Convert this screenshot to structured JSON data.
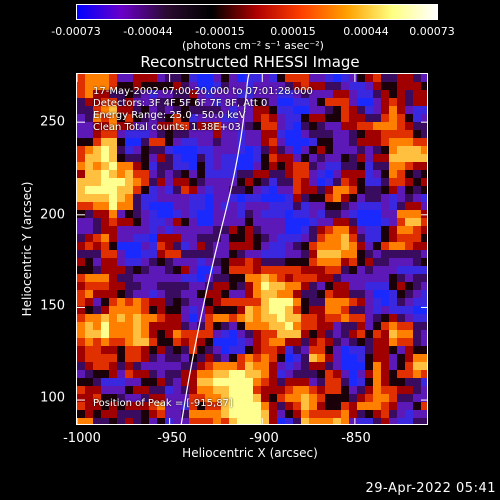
{
  "colorbar": {
    "ticks": [
      "-0.00073",
      "-0.00044",
      "-0.00015",
      "0.00015",
      "0.00044",
      "0.00073"
    ],
    "units": "(photons cm⁻² s⁻¹ asec⁻²)",
    "colors": [
      "#0000ff",
      "#6a00c8",
      "#2a0a30",
      "#000000",
      "#b00000",
      "#ff4000",
      "#ffa000",
      "#ffff80",
      "#ffffff"
    ]
  },
  "title": "Reconstructed RHESSI Image",
  "info": {
    "line1": "17-May-2002 07:00:20.000 to 07:01:28.000",
    "line2": "Detectors: 3F 4F 5F 6F 7F 8F, Att 0",
    "line3": "Energy Range: 25.0 - 50.0 keV",
    "line4": "Clean     Total counts: 1.38E+03",
    "peak": "Position of Peak = [-915,87]"
  },
  "axes": {
    "xlabel": "Heliocentric X (arcsec)",
    "ylabel": "Heliocentric Y (arcsec)",
    "xticks": [
      "-1000",
      "-950",
      "-900",
      "-850"
    ],
    "yticks": [
      "250",
      "200",
      "150",
      "100"
    ],
    "xrange": [
      -1000,
      -810
    ],
    "yrange": [
      86,
      276
    ]
  },
  "timestamp": "29-Apr-2022 05:41"
}
